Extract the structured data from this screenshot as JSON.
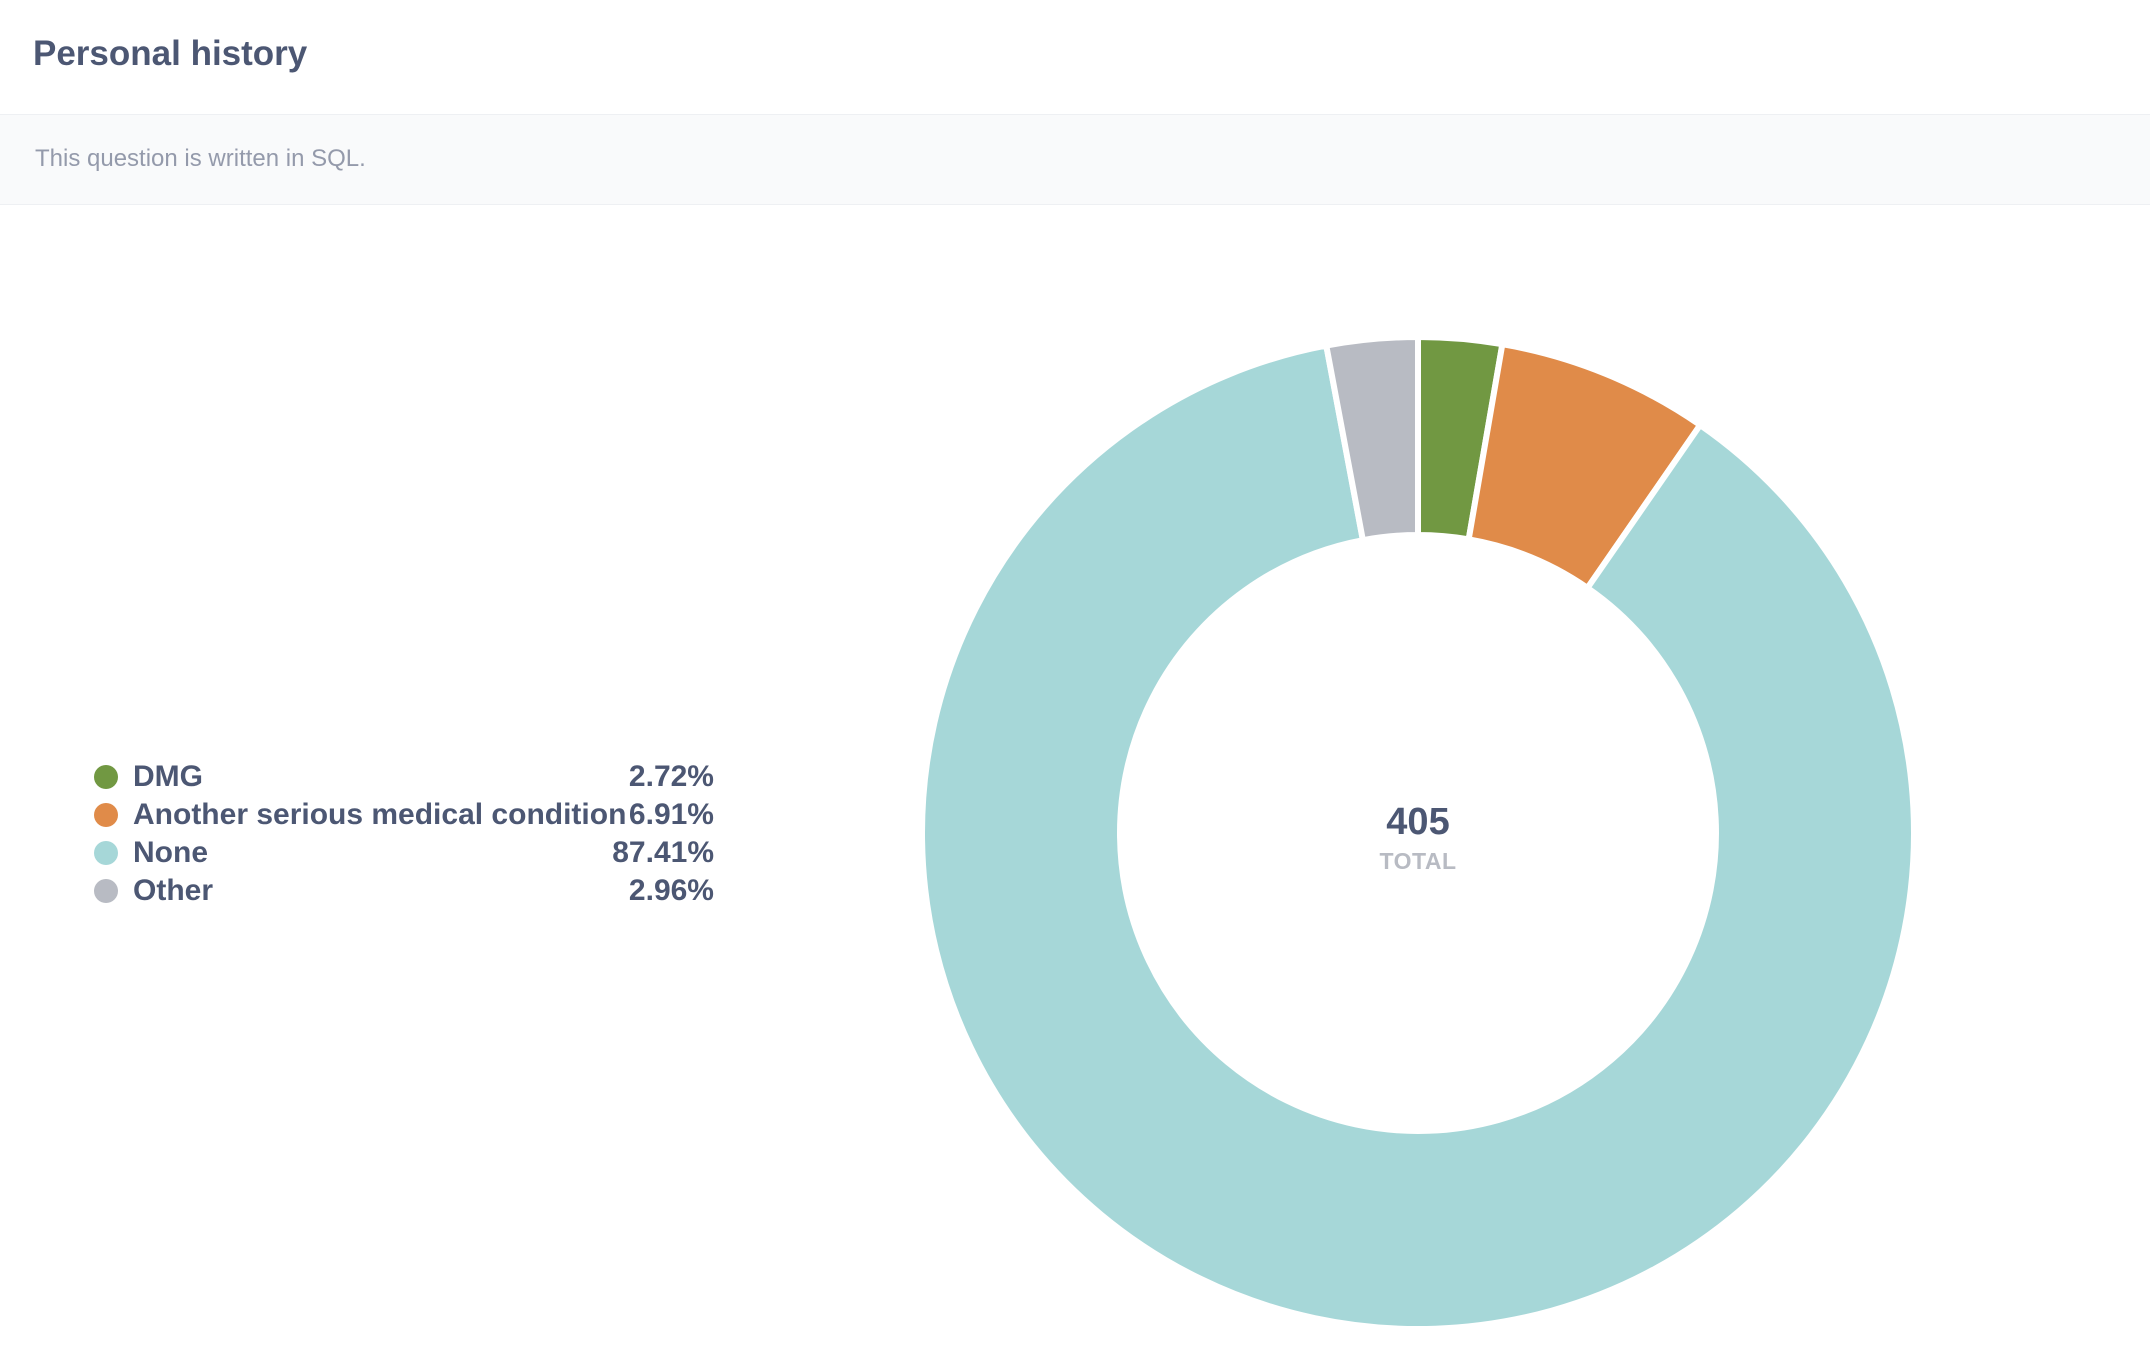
{
  "header": {
    "title": "Personal history"
  },
  "description": "This question is written in SQL.",
  "colors": {
    "DMG": "#719842",
    "Another serious medical condition": "#e08b49",
    "None": "#a6d7d8",
    "Other": "#b8bbc3"
  },
  "chart_data": {
    "type": "pie",
    "donut": true,
    "total_value": "405",
    "total_label": "TOTAL",
    "legend_position": "left",
    "slices": [
      {
        "label": "DMG",
        "percent": 2.72,
        "percent_label": "2.72%",
        "color": "#719842"
      },
      {
        "label": "Another serious medical condition",
        "percent": 6.91,
        "percent_label": "6.91%",
        "color": "#e08b49"
      },
      {
        "label": "None",
        "percent": 87.41,
        "percent_label": "87.41%",
        "color": "#a6d7d8"
      },
      {
        "label": "Other",
        "percent": 2.96,
        "percent_label": "2.96%",
        "color": "#b8bbc3"
      }
    ]
  }
}
